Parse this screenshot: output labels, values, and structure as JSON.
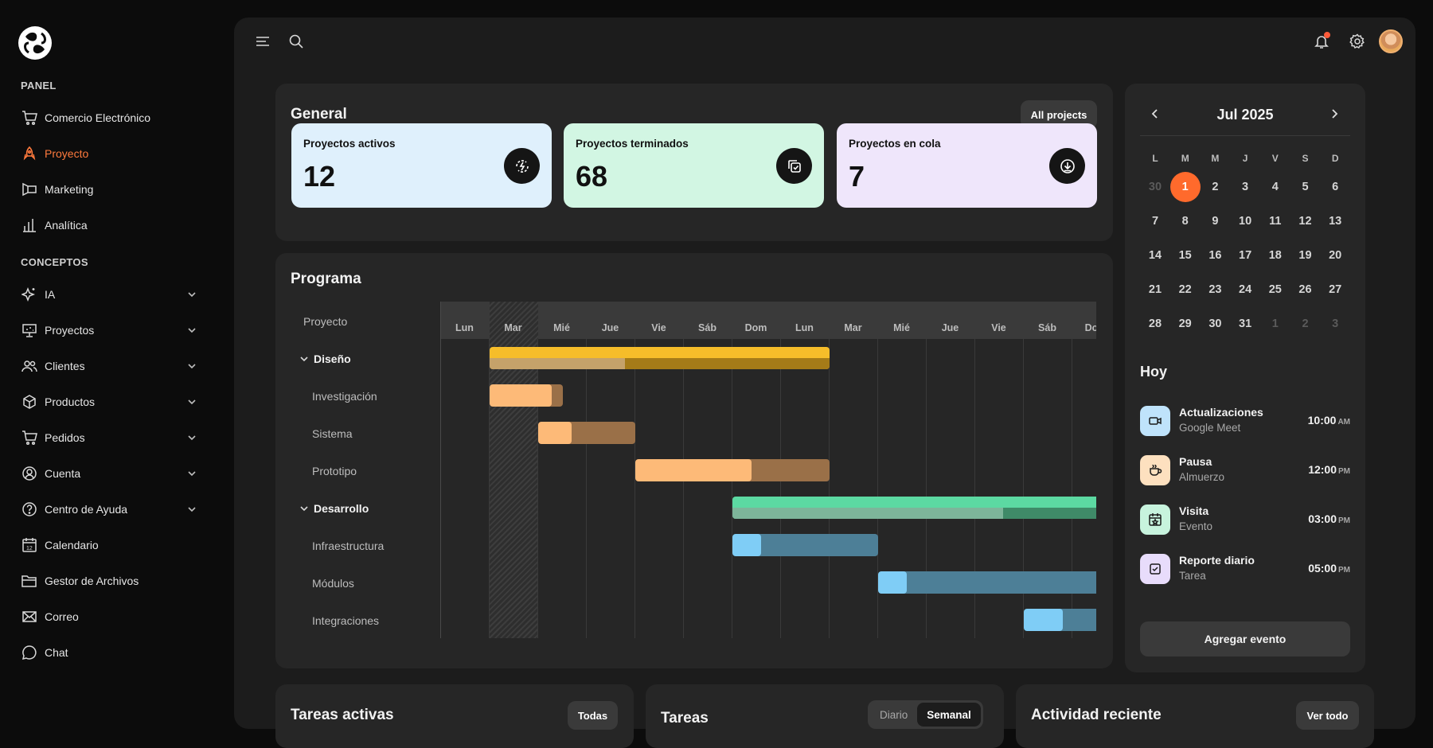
{
  "sidebar": {
    "panel_label": "PANEL",
    "concepts_label": "CONCEPTOS",
    "panel_items": [
      {
        "label": "Comercio Electrónico",
        "icon": "cart-icon"
      },
      {
        "label": "Proyecto",
        "icon": "rocket-icon",
        "active": true
      },
      {
        "label": "Marketing",
        "icon": "megaphone-icon"
      },
      {
        "label": "Analítica",
        "icon": "bar-chart-icon"
      }
    ],
    "concept_items": [
      {
        "label": "IA",
        "icon": "sparkle-icon",
        "expandable": true
      },
      {
        "label": "Proyectos",
        "icon": "presentation-icon",
        "expandable": true
      },
      {
        "label": "Clientes",
        "icon": "users-icon",
        "expandable": true
      },
      {
        "label": "Productos",
        "icon": "box-icon",
        "expandable": true
      },
      {
        "label": "Pedidos",
        "icon": "cart-icon",
        "expandable": true
      },
      {
        "label": "Cuenta",
        "icon": "user-circle-icon",
        "expandable": true
      },
      {
        "label": "Centro de Ayuda",
        "icon": "help-icon",
        "expandable": true
      },
      {
        "label": "Calendario",
        "icon": "calendar-icon"
      },
      {
        "label": "Gestor de Archivos",
        "icon": "folder-icon"
      },
      {
        "label": "Correo",
        "icon": "mail-icon"
      },
      {
        "label": "Chat",
        "icon": "chat-icon"
      }
    ]
  },
  "general": {
    "title": "General",
    "all_projects_label": "All projects",
    "stats": [
      {
        "label": "Proyectos activos",
        "value": "12",
        "bg": "#dff0fc",
        "icon": "bolt-cycle-icon"
      },
      {
        "label": "Proyectos terminados",
        "value": "68",
        "bg": "#d2f6e3",
        "icon": "check-copy-icon"
      },
      {
        "label": "Proyectos en cola",
        "value": "7",
        "bg": "#efe6fb",
        "icon": "download-icon"
      }
    ]
  },
  "programa": {
    "title": "Programa",
    "column_header": "Proyecto",
    "days": [
      "Lun",
      "Mar",
      "Mié",
      "Jue",
      "Vie",
      "Sáb",
      "Dom",
      "Lun",
      "Mar",
      "Mié",
      "Jue",
      "Vie",
      "Sáb",
      "Dom"
    ],
    "rows": [
      {
        "label": "Diseño",
        "group": true
      },
      {
        "label": "Investigación"
      },
      {
        "label": "Sistema"
      },
      {
        "label": "Prototipo"
      },
      {
        "label": "Desarrollo",
        "group": true
      },
      {
        "label": "Infraestructura"
      },
      {
        "label": "Módulos"
      },
      {
        "label": "Integraciones"
      }
    ]
  },
  "calendar": {
    "month_label": "Jul 2025",
    "weekday_headers": [
      "L",
      "M",
      "M",
      "J",
      "V",
      "S",
      "D"
    ],
    "weeks": [
      [
        "30",
        "1",
        "2",
        "3",
        "4",
        "5",
        "6"
      ],
      [
        "7",
        "8",
        "9",
        "10",
        "11",
        "12",
        "13"
      ],
      [
        "14",
        "15",
        "16",
        "17",
        "18",
        "19",
        "20"
      ],
      [
        "21",
        "22",
        "23",
        "24",
        "25",
        "26",
        "27"
      ],
      [
        "28",
        "29",
        "30",
        "31",
        "1",
        "2",
        "3"
      ]
    ]
  },
  "today": {
    "title": "Hoy",
    "events": [
      {
        "title": "Actualizaciones",
        "subtitle": "Google Meet",
        "time": "10:00",
        "ampm": "AM",
        "color": "#bfe3fb",
        "icon": "video-icon"
      },
      {
        "title": "Pausa",
        "subtitle": "Almuerzo",
        "time": "12:00",
        "ampm": "PM",
        "color": "#fde0bf",
        "icon": "coffee-icon"
      },
      {
        "title": "Visita",
        "subtitle": "Evento",
        "time": "03:00",
        "ampm": "PM",
        "color": "#c7f3dd",
        "icon": "calendar-star-icon"
      },
      {
        "title": "Reporte diario",
        "subtitle": "Tarea",
        "time": "05:00",
        "ampm": "PM",
        "color": "#e8dcfb",
        "icon": "checkbox-icon"
      }
    ],
    "add_event_label": "Agregar evento"
  },
  "bottom": {
    "tareas_activas": {
      "title": "Tareas activas",
      "button": "Todas"
    },
    "tareas": {
      "title": "Tareas",
      "options": [
        "Diario",
        "Semanal"
      ]
    },
    "actividad": {
      "title": "Actividad reciente",
      "button": "Ver todo"
    }
  },
  "colors": {
    "accent": "#ff7a3d",
    "design_bar": "#f6bd2a",
    "design_task": "#fdba78",
    "dev_bar": "#5cd9a2",
    "dev_task": "#7fcdf6"
  }
}
